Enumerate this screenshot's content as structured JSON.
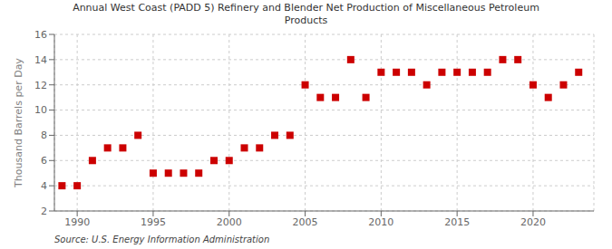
{
  "chart_data": {
    "type": "scatter",
    "title": "Annual West Coast (PADD 5) Refinery and Blender Net Production of Miscellaneous Petroleum\nProducts",
    "ylabel": "Thousand Barrels per Day",
    "source": "Source: U.S. Energy Information Administration",
    "x": [
      1989,
      1990,
      1991,
      1992,
      1993,
      1994,
      1995,
      1996,
      1997,
      1998,
      1999,
      2000,
      2001,
      2002,
      2003,
      2004,
      2005,
      2006,
      2007,
      2008,
      2009,
      2010,
      2011,
      2012,
      2013,
      2014,
      2015,
      2016,
      2017,
      2018,
      2019,
      2020,
      2021,
      2022,
      2023
    ],
    "values": [
      4,
      4,
      6,
      7,
      7,
      8,
      5,
      5,
      5,
      5,
      6,
      6,
      7,
      7,
      8,
      8,
      12,
      11,
      11,
      14,
      11,
      13,
      13,
      13,
      12,
      13,
      13,
      13,
      13,
      14,
      14,
      12,
      11,
      12,
      13
    ],
    "color": "#cc0000",
    "marker": "square",
    "xlim": [
      1988.5,
      2024
    ],
    "xticks": [
      1990,
      1995,
      2000,
      2005,
      2010,
      2015,
      2020
    ],
    "ylim": [
      2,
      16
    ],
    "yticks": [
      2,
      4,
      6,
      8,
      10,
      12,
      14,
      16
    ],
    "grid": true
  }
}
